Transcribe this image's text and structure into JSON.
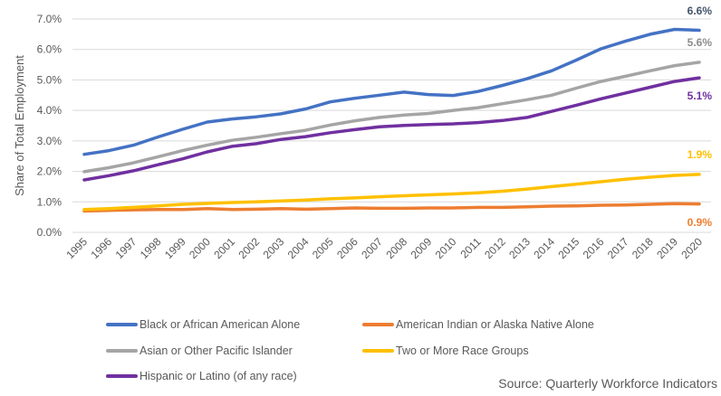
{
  "chart_data": {
    "type": "line",
    "title": "",
    "xlabel": "",
    "ylabel": "Share of Total Employment",
    "ylim": [
      0,
      7
    ],
    "yticks": [
      "0.0%",
      "1.0%",
      "2.0%",
      "3.0%",
      "4.0%",
      "5.0%",
      "6.0%",
      "7.0%"
    ],
    "ytick_values": [
      0,
      1,
      2,
      3,
      4,
      5,
      6,
      7
    ],
    "grid": true,
    "legend_position": "bottom",
    "x": [
      "1995",
      "1996",
      "1997",
      "1998",
      "1999",
      "2000",
      "2001",
      "2002",
      "2003",
      "2004",
      "2005",
      "2006",
      "2007",
      "2008",
      "2009",
      "2010",
      "2011",
      "2012",
      "2013",
      "2014",
      "2015",
      "2016",
      "2017",
      "2018",
      "2019",
      "2020"
    ],
    "series": [
      {
        "name": "Black or African American Alone",
        "color": "#4472C4",
        "end_label": "6.6%",
        "end_label_color": "#44546A",
        "values": [
          2.56,
          2.68,
          2.86,
          3.13,
          3.38,
          3.62,
          3.72,
          3.79,
          3.89,
          4.05,
          4.28,
          4.4,
          4.5,
          4.6,
          4.52,
          4.49,
          4.62,
          4.82,
          5.04,
          5.3,
          5.65,
          6.02,
          6.27,
          6.5,
          6.66,
          6.63
        ]
      },
      {
        "name": "American Indian or Alaska Native Alone",
        "color": "#ED7D31",
        "end_label": "0.9%",
        "end_label_color": "#ED7D31",
        "values": [
          0.7,
          0.72,
          0.74,
          0.75,
          0.75,
          0.78,
          0.75,
          0.76,
          0.78,
          0.76,
          0.78,
          0.8,
          0.79,
          0.79,
          0.8,
          0.8,
          0.82,
          0.82,
          0.84,
          0.86,
          0.87,
          0.89,
          0.9,
          0.92,
          0.94,
          0.93
        ]
      },
      {
        "name": "Asian or Other Pacific Islander",
        "color": "#A5A5A5",
        "end_label": "5.6%",
        "end_label_color": "#8C8C8C",
        "values": [
          1.99,
          2.12,
          2.28,
          2.48,
          2.68,
          2.86,
          3.02,
          3.12,
          3.24,
          3.35,
          3.52,
          3.66,
          3.77,
          3.85,
          3.9,
          4.0,
          4.09,
          4.22,
          4.35,
          4.5,
          4.73,
          4.95,
          5.12,
          5.3,
          5.47,
          5.58
        ]
      },
      {
        "name": "Two or More Race Groups",
        "color": "#FFC000",
        "end_label": "1.9%",
        "end_label_color": "#FFC000",
        "values": [
          0.75,
          0.78,
          0.82,
          0.87,
          0.92,
          0.95,
          0.98,
          1.0,
          1.03,
          1.06,
          1.1,
          1.13,
          1.17,
          1.2,
          1.23,
          1.26,
          1.3,
          1.35,
          1.42,
          1.5,
          1.58,
          1.66,
          1.74,
          1.81,
          1.87,
          1.9
        ]
      },
      {
        "name": "Hispanic or Latino (of any race)",
        "color": "#7030A0",
        "end_label": "5.1%",
        "end_label_color": "#7030A0",
        "values": [
          1.72,
          1.86,
          2.02,
          2.22,
          2.41,
          2.64,
          2.82,
          2.91,
          3.05,
          3.14,
          3.27,
          3.37,
          3.46,
          3.51,
          3.54,
          3.56,
          3.6,
          3.67,
          3.77,
          3.97,
          4.17,
          4.38,
          4.57,
          4.76,
          4.95,
          5.07
        ]
      }
    ],
    "source": "Source: Quarterly Workforce Indicators"
  }
}
